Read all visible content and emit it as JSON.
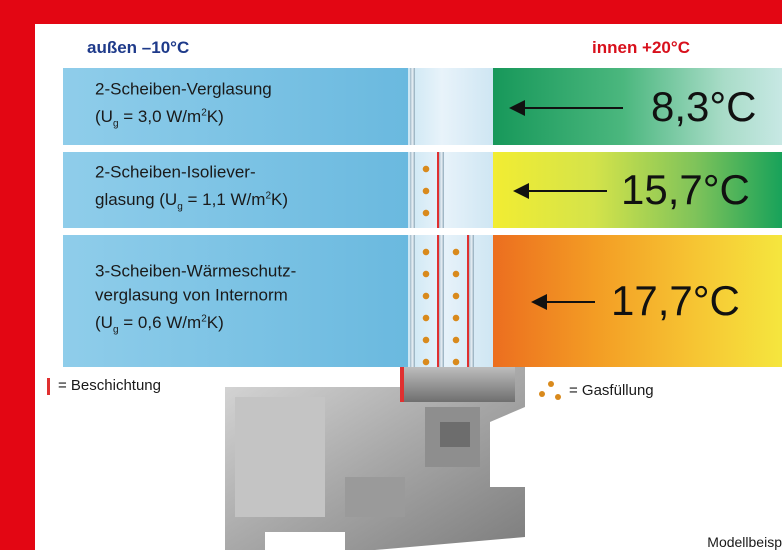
{
  "headers": {
    "outside": "außen –10°C",
    "inside": "innen +20°C"
  },
  "rows": [
    {
      "line1": "2-Scheiben-Verglasung",
      "line2_pre": "(U",
      "line2_sub": "g",
      "line2_mid": " = 3,0 W/m",
      "line2_sup": "2",
      "line2_post": "K)",
      "temperature": "8,3°C"
    },
    {
      "line1": "2-Scheiben-Isoliever-",
      "line2_pre": "glasung (U",
      "line2_sub": "g",
      "line2_mid": " = 1,1 W/m",
      "line2_sup": "2",
      "line2_post": "K)",
      "temperature": "15,7°C"
    },
    {
      "line1": "3-Scheiben-Wärmeschutz-",
      "line1b": "verglasung von Internorm",
      "line2_pre": "(U",
      "line2_sub": "g",
      "line2_mid": " = 0,6 W/m",
      "line2_sup": "2",
      "line2_post": "K)",
      "temperature": "17,7°C"
    }
  ],
  "legend": {
    "coating": "= Beschichtung",
    "gas": "= Gasfüllung"
  },
  "footer": "Modellbeisp",
  "colors": {
    "frame_red": "#e30613",
    "outside_blue": "#1e3a8a",
    "inside_red": "#d8101c",
    "coating": "#e03030",
    "gas": "#d98a1c"
  }
}
